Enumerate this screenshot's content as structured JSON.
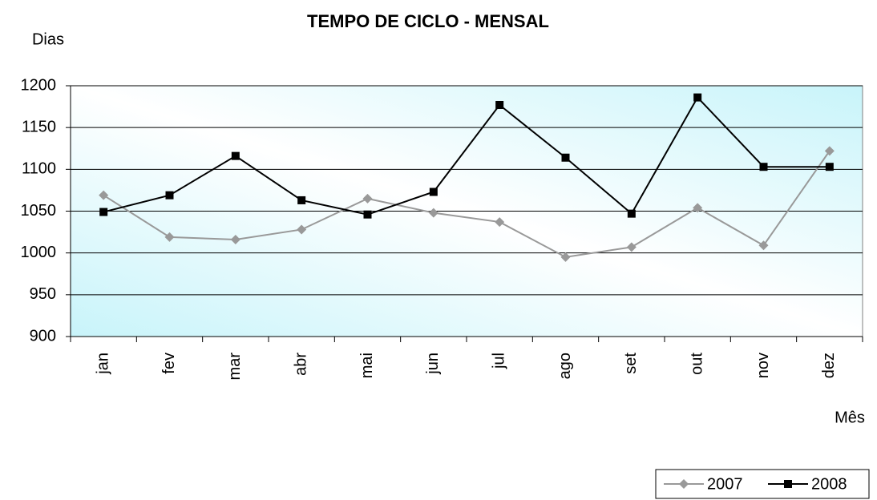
{
  "chart_data": {
    "type": "line",
    "title": "TEMPO DE CICLO - MENSAL",
    "y_label": "Dias",
    "x_label": "Mês",
    "categories": [
      "jan",
      "fev",
      "mar",
      "abr",
      "mai",
      "jun",
      "jul",
      "ago",
      "set",
      "out",
      "nov",
      "dez"
    ],
    "series": [
      {
        "name": "2007",
        "color": "#999999",
        "marker": "diamond",
        "values": [
          1069,
          1019,
          1016,
          1028,
          1065,
          1048,
          1037,
          995,
          1007,
          1054,
          1009,
          1122
        ]
      },
      {
        "name": "2008",
        "color": "#000000",
        "marker": "square",
        "values": [
          1049,
          1069,
          1116,
          1063,
          1046,
          1073,
          1177,
          1114,
          1047,
          1186,
          1103,
          1103
        ]
      }
    ],
    "ylim": [
      900,
      1200
    ],
    "yticks": [
      900,
      950,
      1000,
      1050,
      1100,
      1150,
      1200
    ],
    "grid": true,
    "legend": "bottom-right"
  }
}
